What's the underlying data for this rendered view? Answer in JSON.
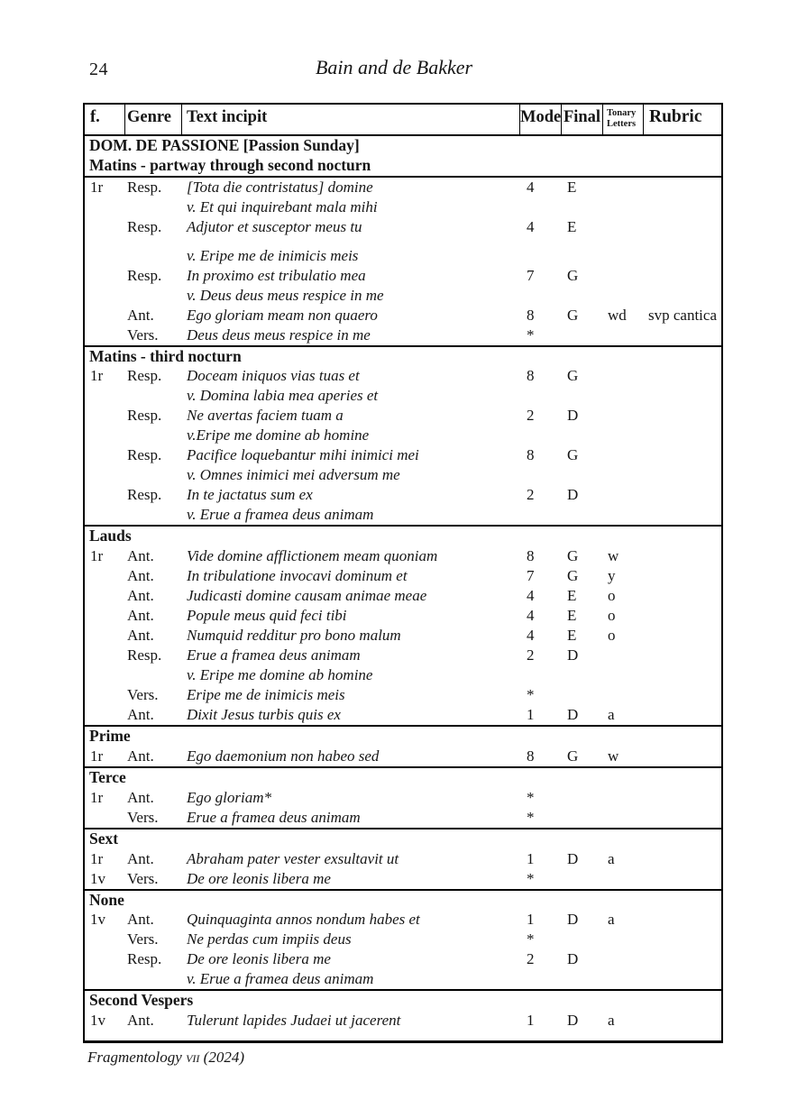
{
  "page": {
    "number": "24",
    "running_header": "Bain and de Bakker",
    "footer": {
      "journal": "Fragmentology",
      "volume": "vii",
      "year": "(2024)"
    }
  },
  "table": {
    "header": {
      "f": "f.",
      "genre": "Genre",
      "incipit": "Text incipit",
      "mode": "Mode",
      "final": "Final",
      "tonary": "Tonary Letters",
      "rubric": "Rubric"
    },
    "sections": [
      {
        "headings": [
          "DOM. DE PASSIONE [Passion Sunday]",
          "Matins - partway through second nocturn"
        ],
        "rows": [
          {
            "f": "1r",
            "genre": "Resp.",
            "text": "[Tota die contristatus] domine",
            "mode": "4",
            "final": "E"
          },
          {
            "text": "v. Et qui inquirebant mala mihi"
          },
          {
            "genre": "Resp.",
            "text": "Adjutor et susceptor meus tu",
            "mode": "4",
            "final": "E"
          },
          {
            "text": "v. Eripe me de inimicis meis",
            "gap": true
          },
          {
            "genre": "Resp.",
            "text": "In proximo est tribulatio mea",
            "mode": "7",
            "final": "G"
          },
          {
            "text": "v. Deus deus meus respice in me"
          },
          {
            "genre": "Ant.",
            "text": "Ego gloriam meam non quaero",
            "mode": "8",
            "final": "G",
            "tonary": "wd",
            "rubric": "svp cantica"
          },
          {
            "genre": "Vers.",
            "text": "Deus deus meus respice in me",
            "mode": "*"
          }
        ]
      },
      {
        "headings": [
          "Matins - third nocturn"
        ],
        "rows": [
          {
            "f": "1r",
            "genre": "Resp.",
            "text": "Doceam iniquos vias tuas et",
            "mode": "8",
            "final": "G"
          },
          {
            "text": "v. Domina labia mea aperies et"
          },
          {
            "genre": "Resp.",
            "text": "Ne avertas faciem tuam a",
            "mode": "2",
            "final": "D"
          },
          {
            "text": "v.Eripe me domine ab homine"
          },
          {
            "genre": "Resp.",
            "text": "Pacifice loquebantur mihi inimici mei",
            "mode": "8",
            "final": "G"
          },
          {
            "text": "v. Omnes inimici mei adversum me"
          },
          {
            "genre": "Resp.",
            "text": "In te jactatus sum ex",
            "mode": "2",
            "final": "D"
          },
          {
            "text": "v. Erue a framea deus animam"
          }
        ]
      },
      {
        "headings": [
          "Lauds"
        ],
        "rows": [
          {
            "f": "1r",
            "genre": "Ant.",
            "text": "Vide domine afflictionem meam quoniam",
            "mode": "8",
            "final": "G",
            "tonary": "w"
          },
          {
            "genre": "Ant.",
            "text": "In tribulatione invocavi dominum et",
            "mode": "7",
            "final": "G",
            "tonary": "y"
          },
          {
            "genre": "Ant.",
            "text": "Judicasti domine causam animae meae",
            "mode": "4",
            "final": "E",
            "tonary": "o"
          },
          {
            "genre": "Ant.",
            "text": "Popule meus quid feci tibi",
            "mode": "4",
            "final": "E",
            "tonary": "o"
          },
          {
            "genre": "Ant.",
            "text": "Numquid redditur pro bono malum",
            "mode": "4",
            "final": "E",
            "tonary": "o"
          },
          {
            "genre": "Resp.",
            "text": "Erue a framea deus animam",
            "mode": "2",
            "final": "D"
          },
          {
            "text": "v. Eripe me domine ab homine"
          },
          {
            "genre": "Vers.",
            "text": "Eripe me de inimicis meis",
            "mode": "*"
          },
          {
            "genre": "Ant.",
            "text": "Dixit Jesus turbis quis ex",
            "mode": "1",
            "final": "D",
            "tonary": "a"
          }
        ]
      },
      {
        "headings": [
          "Prime"
        ],
        "rows": [
          {
            "f": "1r",
            "genre": "Ant.",
            "text": "Ego daemonium non habeo sed",
            "mode": "8",
            "final": "G",
            "tonary": "w"
          }
        ]
      },
      {
        "headings": [
          "Terce"
        ],
        "rows": [
          {
            "f": "1r",
            "genre": "Ant.",
            "text": "Ego gloriam*",
            "mode": "*"
          },
          {
            "genre": "Vers.",
            "text": "Erue a framea deus animam",
            "mode": "*"
          }
        ]
      },
      {
        "headings": [
          "Sext"
        ],
        "rows": [
          {
            "f": "1r",
            "genre": "Ant.",
            "text": "Abraham pater vester exsultavit ut",
            "mode": "1",
            "final": "D",
            "tonary": "a"
          },
          {
            "f": "1v",
            "genre": "Vers.",
            "text": "De ore leonis libera me",
            "mode": "*"
          }
        ]
      },
      {
        "headings": [
          "None"
        ],
        "rows": [
          {
            "f": "1v",
            "genre": "Ant.",
            "text": "Quinquaginta annos nondum habes et",
            "mode": "1",
            "final": "D",
            "tonary": "a"
          },
          {
            "genre": "Vers.",
            "text": "Ne perdas cum impiis deus",
            "mode": "*"
          },
          {
            "genre": "Resp.",
            "text": "De ore leonis libera me",
            "mode": "2",
            "final": "D"
          },
          {
            "text": "v. Erue a framea deus animam"
          }
        ]
      },
      {
        "headings": [
          "Second Vespers"
        ],
        "rows": [
          {
            "f": "1v",
            "genre": "Ant.",
            "text": "Tulerunt lapides Judaei ut jacerent",
            "mode": "1",
            "final": "D",
            "tonary": "a"
          }
        ]
      }
    ]
  }
}
